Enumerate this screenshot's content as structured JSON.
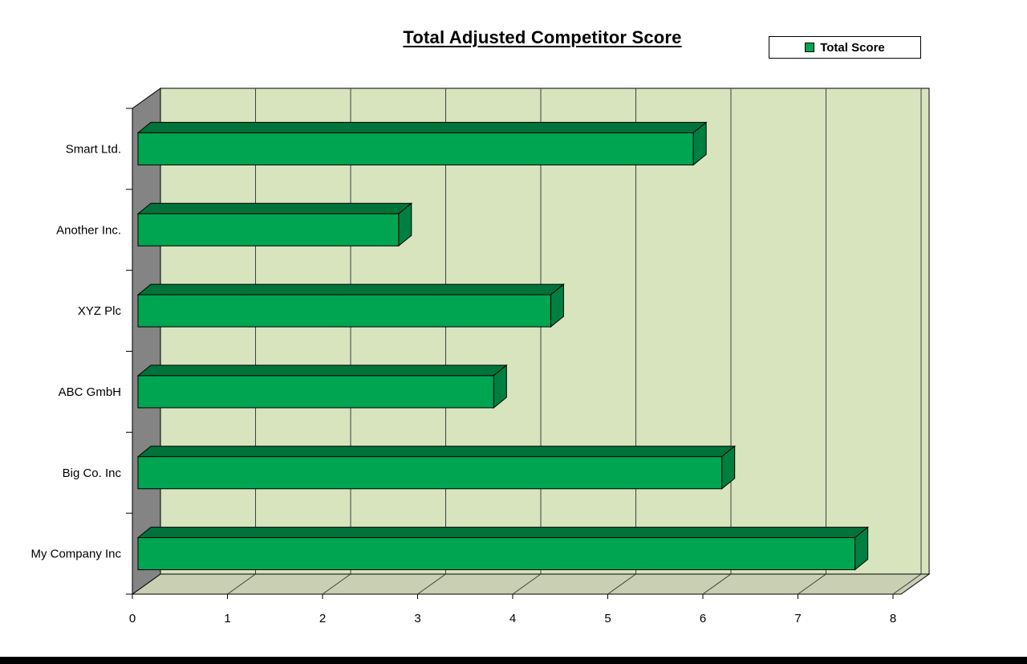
{
  "chart": {
    "title": "Total Adjusted Competitor Score",
    "legend": {
      "label": "Total Score"
    }
  },
  "chart_data": {
    "type": "bar",
    "orientation": "horizontal",
    "style": "3d",
    "title": "Total Adjusted Competitor Score",
    "categories": [
      "Smart Ltd.",
      "Another Inc.",
      "XYZ Plc",
      "ABC GmbH",
      "Big Co. Inc",
      "My Company Inc"
    ],
    "series": [
      {
        "name": "Total Score",
        "values": [
          5.9,
          2.8,
          4.4,
          3.8,
          6.2,
          7.6
        ]
      }
    ],
    "xlabel": "",
    "ylabel": "",
    "xlim": [
      0,
      8
    ],
    "xticks": [
      0,
      1,
      2,
      3,
      4,
      5,
      6,
      7,
      8
    ],
    "grid": true,
    "legend_position": "top-right",
    "colors": {
      "bar_front": "#00A551",
      "bar_top": "#00733A",
      "bar_side": "#008040",
      "wall": "#D8E4BE",
      "floor": "#C8CFB2",
      "left_wall": "#848484",
      "gridline": "#3F3F3F",
      "outline": "#000000"
    }
  }
}
